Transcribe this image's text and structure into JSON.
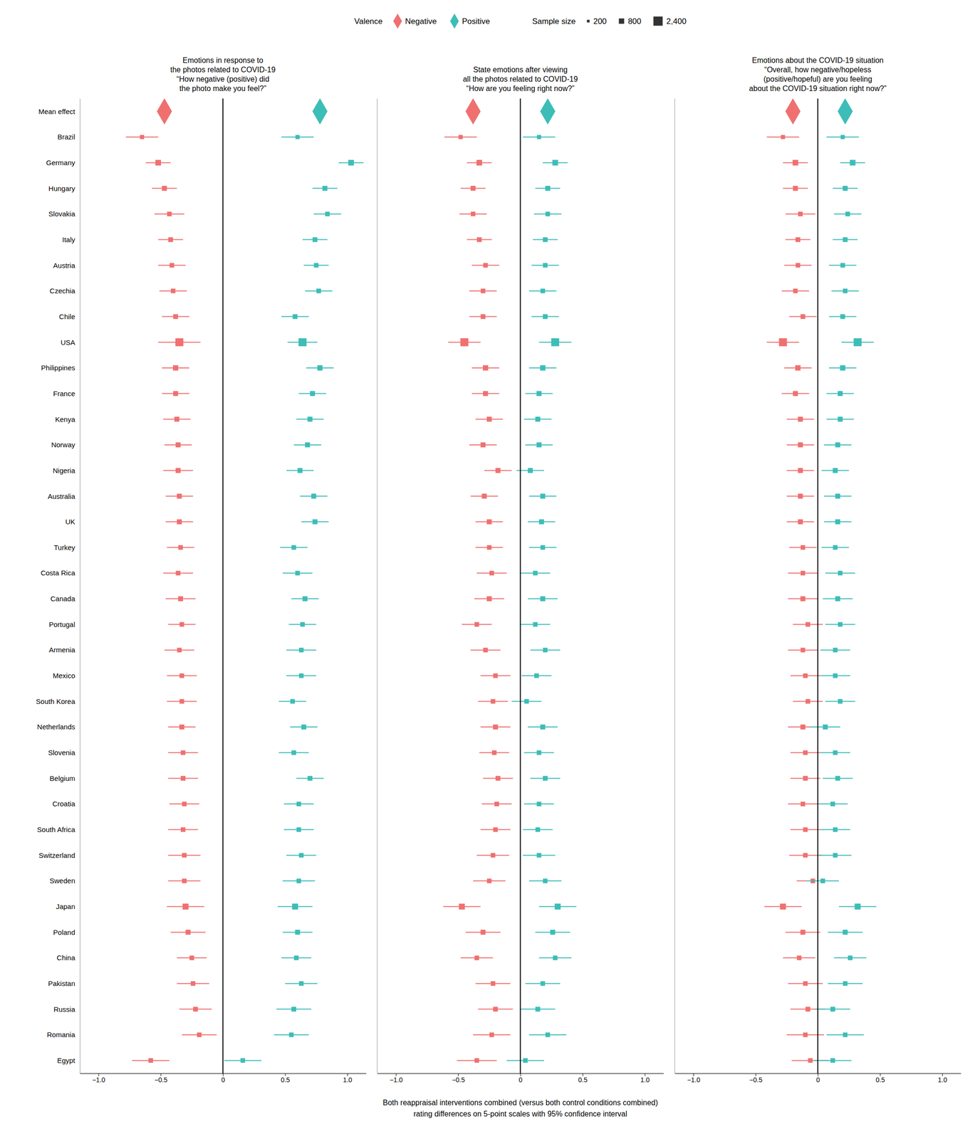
{
  "chart_data": {
    "type": "scatter",
    "categories": [
      "Mean effect",
      "Brazil",
      "Germany",
      "Hungary",
      "Slovakia",
      "Italy",
      "Austria",
      "Czechia",
      "Chile",
      "USA",
      "Philippines",
      "France",
      "Kenya",
      "Norway",
      "Nigeria",
      "Australia",
      "UK",
      "Turkey",
      "Costa Rica",
      "Canada",
      "Portugal",
      "Armenia",
      "Mexico",
      "South Korea",
      "Netherlands",
      "Slovenia",
      "Belgium",
      "Croatia",
      "South Africa",
      "Switzerland",
      "Sweden",
      "Japan",
      "Poland",
      "China",
      "Pakistan",
      "Russia",
      "Romania",
      "Egypt"
    ],
    "sample_sizes": [
      null,
      500,
      900,
      700,
      600,
      650,
      600,
      600,
      650,
      1800,
      800,
      700,
      700,
      700,
      700,
      700,
      700,
      600,
      600,
      700,
      600,
      600,
      600,
      600,
      700,
      600,
      650,
      600,
      600,
      600,
      600,
      1000,
      700,
      600,
      600,
      650,
      600,
      600
    ],
    "series": [
      {
        "name": "Negative",
        "color": "#F07070"
      },
      {
        "name": "Positive",
        "color": "#3DBDB8"
      }
    ],
    "legend_title": "Valence",
    "size_legend": {
      "title": "Sample size",
      "values": [
        200,
        800,
        2400
      ],
      "labels": [
        "200",
        "800",
        "2,400"
      ]
    },
    "xlim": [
      -1.15,
      1.15
    ],
    "xticks": [
      {
        "value": -1.0,
        "label": "−1.0"
      },
      {
        "value": -0.5,
        "label": "−0.5"
      },
      0,
      0.5,
      {
        "value": 1.0,
        "label": "1.0"
      }
    ],
    "xlabel": "Both reappraisal interventions combined (versus both control conditions combined)\nrating differences on 5-point scales with 95% confidence interval",
    "panels": [
      {
        "title": "Emotions in response to\nthe photos related to COVID-19\n“How negative (positive) did\nthe photo make you feel?”",
        "series": [
          {
            "values": [
              -0.47,
              -0.65,
              -0.52,
              -0.47,
              -0.43,
              -0.42,
              -0.41,
              -0.4,
              -0.38,
              -0.35,
              -0.38,
              -0.38,
              -0.37,
              -0.36,
              -0.36,
              -0.35,
              -0.35,
              -0.34,
              -0.36,
              -0.34,
              -0.33,
              -0.35,
              -0.33,
              -0.33,
              -0.33,
              -0.32,
              -0.32,
              -0.31,
              -0.32,
              -0.31,
              -0.31,
              -0.3,
              -0.28,
              -0.25,
              -0.24,
              -0.22,
              -0.19,
              -0.58
            ],
            "ci_low": [
              null,
              -0.78,
              -0.62,
              -0.57,
              -0.55,
              -0.52,
              -0.52,
              -0.51,
              -0.49,
              -0.52,
              -0.49,
              -0.49,
              -0.48,
              -0.47,
              -0.48,
              -0.46,
              -0.46,
              -0.45,
              -0.48,
              -0.46,
              -0.44,
              -0.47,
              -0.45,
              -0.45,
              -0.44,
              -0.44,
              -0.44,
              -0.43,
              -0.44,
              -0.44,
              -0.44,
              -0.45,
              -0.42,
              -0.37,
              -0.37,
              -0.35,
              -0.33,
              -0.73
            ],
            "ci_high": [
              null,
              -0.52,
              -0.42,
              -0.37,
              -0.31,
              -0.32,
              -0.3,
              -0.29,
              -0.27,
              -0.18,
              -0.27,
              -0.27,
              -0.26,
              -0.25,
              -0.24,
              -0.24,
              -0.24,
              -0.23,
              -0.24,
              -0.22,
              -0.22,
              -0.23,
              -0.21,
              -0.21,
              -0.22,
              -0.2,
              -0.2,
              -0.19,
              -0.2,
              -0.18,
              -0.18,
              -0.15,
              -0.14,
              -0.13,
              -0.11,
              -0.09,
              -0.05,
              -0.43
            ]
          },
          {
            "values": [
              0.78,
              0.6,
              1.03,
              0.82,
              0.84,
              0.74,
              0.75,
              0.77,
              0.58,
              0.64,
              0.78,
              0.72,
              0.7,
              0.68,
              0.62,
              0.73,
              0.74,
              0.57,
              0.6,
              0.66,
              0.64,
              0.63,
              0.63,
              0.56,
              0.65,
              0.57,
              0.7,
              0.61,
              0.61,
              0.63,
              0.61,
              0.58,
              0.6,
              0.59,
              0.63,
              0.57,
              0.55,
              0.16
            ],
            "ci_low": [
              null,
              0.47,
              0.93,
              0.72,
              0.73,
              0.64,
              0.65,
              0.66,
              0.47,
              0.52,
              0.67,
              0.61,
              0.59,
              0.57,
              0.51,
              0.62,
              0.63,
              0.46,
              0.48,
              0.55,
              0.53,
              0.51,
              0.51,
              0.45,
              0.54,
              0.45,
              0.59,
              0.49,
              0.49,
              0.51,
              0.48,
              0.44,
              0.48,
              0.47,
              0.5,
              0.43,
              0.41,
              0.01
            ],
            "ci_high": [
              null,
              0.73,
              1.13,
              0.92,
              0.95,
              0.84,
              0.85,
              0.88,
              0.69,
              0.76,
              0.89,
              0.83,
              0.81,
              0.79,
              0.73,
              0.84,
              0.85,
              0.68,
              0.72,
              0.77,
              0.75,
              0.75,
              0.75,
              0.67,
              0.76,
              0.69,
              0.81,
              0.73,
              0.73,
              0.75,
              0.74,
              0.72,
              0.72,
              0.71,
              0.76,
              0.71,
              0.69,
              0.31
            ]
          }
        ]
      },
      {
        "title": "State emotions after viewing\nall the photos related to COVID-19\n“How are you feeling right now?”",
        "series": [
          {
            "values": [
              -0.38,
              -0.48,
              -0.33,
              -0.38,
              -0.38,
              -0.33,
              -0.28,
              -0.3,
              -0.3,
              -0.45,
              -0.28,
              -0.28,
              -0.25,
              -0.3,
              -0.18,
              -0.29,
              -0.25,
              -0.25,
              -0.23,
              -0.25,
              -0.35,
              -0.28,
              -0.2,
              -0.22,
              -0.2,
              -0.21,
              -0.18,
              -0.19,
              -0.2,
              -0.22,
              -0.25,
              -0.47,
              -0.3,
              -0.35,
              -0.22,
              -0.2,
              -0.23,
              -0.35
            ],
            "ci_low": [
              null,
              -0.61,
              -0.43,
              -0.48,
              -0.49,
              -0.43,
              -0.39,
              -0.41,
              -0.41,
              -0.58,
              -0.39,
              -0.39,
              -0.36,
              -0.41,
              -0.29,
              -0.4,
              -0.36,
              -0.36,
              -0.35,
              -0.37,
              -0.47,
              -0.4,
              -0.32,
              -0.34,
              -0.32,
              -0.33,
              -0.3,
              -0.31,
              -0.32,
              -0.35,
              -0.38,
              -0.62,
              -0.44,
              -0.48,
              -0.36,
              -0.34,
              -0.38,
              -0.51
            ],
            "ci_high": [
              null,
              -0.35,
              -0.23,
              -0.28,
              -0.27,
              -0.23,
              -0.17,
              -0.19,
              -0.19,
              -0.32,
              -0.17,
              -0.17,
              -0.14,
              -0.19,
              -0.07,
              -0.18,
              -0.14,
              -0.14,
              -0.11,
              -0.13,
              -0.23,
              -0.16,
              -0.08,
              -0.1,
              -0.08,
              -0.09,
              -0.06,
              -0.07,
              -0.08,
              -0.09,
              -0.12,
              -0.32,
              -0.16,
              -0.22,
              -0.08,
              -0.06,
              -0.08,
              -0.19
            ]
          },
          {
            "values": [
              0.22,
              0.15,
              0.28,
              0.22,
              0.22,
              0.2,
              0.2,
              0.18,
              0.2,
              0.28,
              0.18,
              0.15,
              0.14,
              0.15,
              0.08,
              0.18,
              0.17,
              0.18,
              0.12,
              0.18,
              0.12,
              0.2,
              0.13,
              0.05,
              0.18,
              0.15,
              0.2,
              0.15,
              0.14,
              0.15,
              0.2,
              0.3,
              0.26,
              0.28,
              0.18,
              0.14,
              0.22,
              0.04
            ],
            "ci_low": [
              null,
              0.02,
              0.18,
              0.12,
              0.11,
              0.1,
              0.09,
              0.07,
              0.09,
              0.15,
              0.07,
              0.04,
              0.03,
              0.04,
              -0.03,
              0.07,
              0.06,
              0.07,
              0.0,
              0.06,
              0.0,
              0.08,
              0.01,
              -0.07,
              0.06,
              0.03,
              0.08,
              0.03,
              0.02,
              0.02,
              0.07,
              0.15,
              0.12,
              0.15,
              0.04,
              0.0,
              0.07,
              -0.11
            ],
            "ci_high": [
              null,
              0.28,
              0.38,
              0.32,
              0.33,
              0.3,
              0.31,
              0.29,
              0.31,
              0.41,
              0.29,
              0.26,
              0.25,
              0.26,
              0.19,
              0.29,
              0.28,
              0.29,
              0.24,
              0.3,
              0.24,
              0.32,
              0.25,
              0.17,
              0.3,
              0.27,
              0.32,
              0.27,
              0.26,
              0.28,
              0.33,
              0.45,
              0.4,
              0.41,
              0.32,
              0.28,
              0.37,
              0.19
            ]
          }
        ]
      },
      {
        "title": "Emotions about the COVID-19 situation\n“Overall, how negative/hopeless\n(positive/hopeful) are you feeling\nabout the COVID-19 situation right now?”",
        "series": [
          {
            "values": [
              -0.2,
              -0.28,
              -0.18,
              -0.18,
              -0.14,
              -0.16,
              -0.16,
              -0.18,
              -0.12,
              -0.28,
              -0.16,
              -0.18,
              -0.14,
              -0.14,
              -0.14,
              -0.14,
              -0.14,
              -0.12,
              -0.12,
              -0.12,
              -0.08,
              -0.12,
              -0.1,
              -0.08,
              -0.12,
              -0.1,
              -0.1,
              -0.12,
              -0.1,
              -0.1,
              -0.04,
              -0.28,
              -0.12,
              -0.15,
              -0.1,
              -0.08,
              -0.1,
              -0.06
            ],
            "ci_low": [
              null,
              -0.41,
              -0.28,
              -0.28,
              -0.26,
              -0.26,
              -0.27,
              -0.29,
              -0.23,
              -0.41,
              -0.27,
              -0.29,
              -0.25,
              -0.25,
              -0.25,
              -0.25,
              -0.25,
              -0.23,
              -0.24,
              -0.24,
              -0.2,
              -0.24,
              -0.22,
              -0.2,
              -0.24,
              -0.22,
              -0.22,
              -0.24,
              -0.22,
              -0.23,
              -0.17,
              -0.43,
              -0.26,
              -0.28,
              -0.24,
              -0.22,
              -0.25,
              -0.21
            ],
            "ci_high": [
              null,
              -0.15,
              -0.08,
              -0.08,
              -0.02,
              -0.06,
              -0.05,
              -0.07,
              -0.01,
              -0.15,
              -0.05,
              -0.07,
              -0.03,
              -0.03,
              -0.03,
              -0.03,
              -0.03,
              -0.01,
              0.0,
              0.0,
              0.04,
              0.0,
              0.02,
              0.04,
              0.0,
              0.02,
              0.02,
              0.0,
              0.02,
              0.03,
              0.09,
              -0.13,
              0.02,
              -0.02,
              0.04,
              0.06,
              0.05,
              0.09
            ]
          },
          {
            "values": [
              0.22,
              0.2,
              0.28,
              0.22,
              0.24,
              0.22,
              0.2,
              0.22,
              0.2,
              0.32,
              0.2,
              0.18,
              0.18,
              0.16,
              0.14,
              0.16,
              0.16,
              0.14,
              0.18,
              0.16,
              0.18,
              0.14,
              0.14,
              0.18,
              0.06,
              0.14,
              0.16,
              0.12,
              0.14,
              0.14,
              0.04,
              0.32,
              0.22,
              0.26,
              0.22,
              0.12,
              0.22,
              0.12
            ],
            "ci_low": [
              null,
              0.07,
              0.18,
              0.12,
              0.13,
              0.12,
              0.09,
              0.11,
              0.09,
              0.19,
              0.09,
              0.07,
              0.07,
              0.05,
              0.03,
              0.05,
              0.05,
              0.03,
              0.06,
              0.04,
              0.06,
              0.02,
              0.02,
              0.06,
              -0.06,
              0.02,
              0.04,
              0.0,
              0.02,
              0.01,
              -0.09,
              0.17,
              0.08,
              0.13,
              0.08,
              -0.02,
              0.07,
              -0.03
            ],
            "ci_high": [
              null,
              0.33,
              0.38,
              0.32,
              0.35,
              0.32,
              0.31,
              0.33,
              0.31,
              0.45,
              0.31,
              0.29,
              0.29,
              0.27,
              0.25,
              0.27,
              0.27,
              0.25,
              0.3,
              0.28,
              0.3,
              0.26,
              0.26,
              0.3,
              0.18,
              0.26,
              0.28,
              0.24,
              0.26,
              0.27,
              0.17,
              0.47,
              0.36,
              0.39,
              0.36,
              0.26,
              0.37,
              0.27
            ]
          }
        ]
      }
    ]
  }
}
